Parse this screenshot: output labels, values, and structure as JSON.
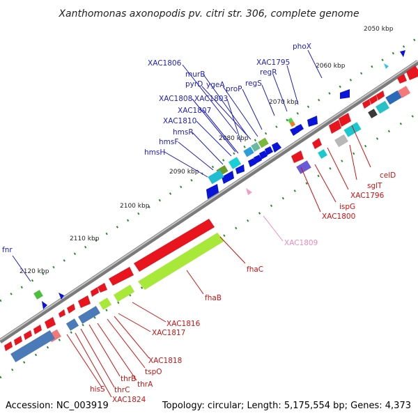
{
  "title": "Xanthomonas axonopodis pv. citri str. 306, complete genome",
  "footer": {
    "accession": "Accession: NC_003919",
    "summary": "Topology: circular; Length: 5,175,554 bp; Genes: 4,373"
  },
  "scale_labels": [
    "2050 kbp",
    "2060 kbp",
    "2070 kbp",
    "2080 kbp",
    "2090 kbp",
    "2100 kbp",
    "2110 kbp",
    "2120 kbp"
  ],
  "colors": {
    "forward_gene": "#0a14d8",
    "reverse_gene": "#e8141e",
    "backbone": "#8a8a8a",
    "tick": "#2a8a2a",
    "blue_label": "#1d1dc8",
    "red_label": "#d11010",
    "pink_label": "#f08cb8"
  },
  "outer_labels": [
    "phoX",
    "XAC1806",
    "XAC1795",
    "murB",
    "regR",
    "pyrD",
    "ygeA",
    "proP",
    "regS",
    "XAC1808",
    "XAC1803",
    "XAC1807",
    "XAC1810",
    "hmsR",
    "hmsF",
    "hmsH",
    "fnr"
  ],
  "inner_labels": [
    "celD",
    "sglT",
    "XAC1796",
    "ispG",
    "XAC1800",
    "XAC1809",
    "fhaC",
    "fhaB",
    "XAC1816",
    "XAC1817",
    "XAC1818",
    "tspO",
    "thrA",
    "thrB",
    "thrC",
    "hisS",
    "XAC1824"
  ]
}
